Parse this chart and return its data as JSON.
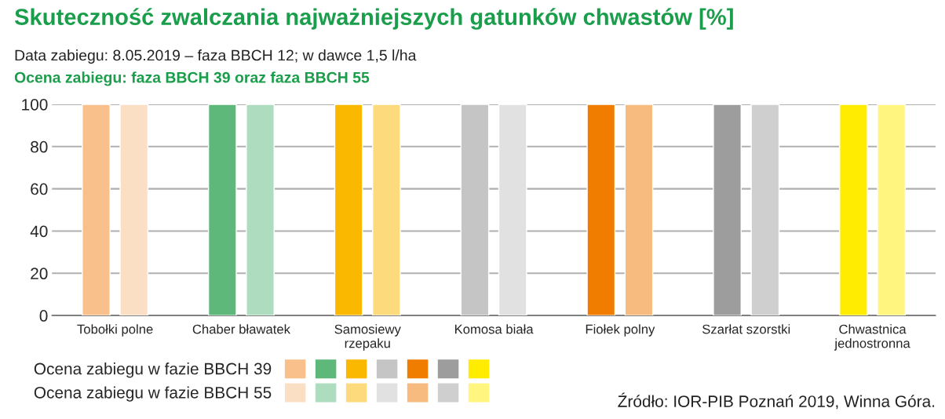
{
  "chart_data": {
    "type": "bar",
    "title": "Skuteczność zwalczania najważniejszych gatunków chwastów [%]",
    "subtitle": "Data zabiegu: 8.05.2019 – faza BBCH 12; w dawce 1,5 l/ha",
    "annotations": [
      "Ocena zabiegu: faza BBCH 39 oraz faza BBCH 55",
      "Źródło: IOR-PIB Poznań 2019, Winna Góra."
    ],
    "categories": [
      "Tobołki polne",
      "Chaber bławatek",
      "Samosiewy\nrzepaku",
      "Komosa biała",
      "Fiołek polny",
      "Szarłat szorstki",
      "Chwastnica\njednostronna"
    ],
    "series": [
      {
        "name": "Ocena zabiegu w fazie BBCH 39",
        "colors": [
          "#f9c08c",
          "#5db87a",
          "#fbb800",
          "#c4c5c4",
          "#f07d00",
          "#9d9d9d",
          "#ffec00"
        ],
        "values": [
          100,
          100,
          100,
          100,
          100,
          100,
          100
        ]
      },
      {
        "name": "Ocena zabiegu w fazie BBCH 55",
        "colors": [
          "#fbdfc5",
          "#aedcbf",
          "#fddb7d",
          "#e1e1e1",
          "#f7bb7f",
          "#cfcfcf",
          "#fff57f"
        ],
        "values": [
          100,
          100,
          100,
          100,
          100,
          100,
          100
        ]
      }
    ],
    "ylim": [
      0,
      100
    ],
    "yticks": [
      0,
      20,
      40,
      60,
      80,
      100
    ],
    "grid": "y",
    "legend": "bottom left"
  }
}
